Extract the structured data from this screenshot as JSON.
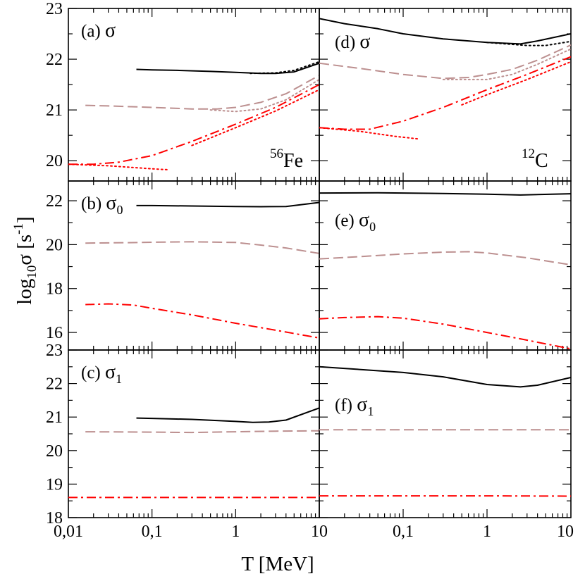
{
  "figure": {
    "xlabel": "T [MeV]",
    "ylabel_main": "log",
    "ylabel_sub": "10",
    "ylabel_sym": "σ [s",
    "ylabel_sup": "-1",
    "ylabel_close": "]"
  },
  "chart_data": [
    {
      "id": "a",
      "type": "line",
      "label": "(a)",
      "sym": "σ",
      "sub": "",
      "nucleus_mass": "56",
      "nucleus_symbol": "Fe",
      "x_scale": "log",
      "xlim": [
        0.01,
        10
      ],
      "ylim": [
        19.6,
        23
      ],
      "yticks": [
        20,
        21,
        22,
        23
      ],
      "ytick_labels": [
        "20",
        "21",
        "22",
        "23"
      ],
      "xtick_labels": [],
      "grid": false,
      "series": [
        {
          "style": "solid",
          "color": "#000000",
          "x": [
            0.065,
            0.1,
            0.2,
            0.5,
            1,
            2,
            3,
            5,
            10
          ],
          "y": [
            21.8,
            21.79,
            21.78,
            21.76,
            21.74,
            21.72,
            21.72,
            21.75,
            21.92
          ]
        },
        {
          "style": "dotted",
          "color": "#000000",
          "x": [
            1.5,
            3,
            5,
            10
          ],
          "y": [
            21.72,
            21.73,
            21.78,
            21.95
          ]
        },
        {
          "style": "dashed",
          "color": "#bc8f8f",
          "x": [
            0.016,
            0.03,
            0.1,
            0.3,
            0.6,
            1,
            2,
            4,
            10
          ],
          "y": [
            21.09,
            21.08,
            21.05,
            21.02,
            21.02,
            21.05,
            21.15,
            21.32,
            21.68
          ]
        },
        {
          "style": "dotted",
          "color": "#bc8f8f",
          "x": [
            0.5,
            1,
            2,
            4,
            10
          ],
          "y": [
            21.0,
            20.97,
            21.02,
            21.2,
            21.6
          ]
        },
        {
          "style": "dashdot",
          "color": "#ff0000",
          "x": [
            0.01,
            0.02,
            0.04,
            0.1,
            0.3,
            1,
            3,
            10
          ],
          "y": [
            19.93,
            19.93,
            19.97,
            20.1,
            20.38,
            20.72,
            21.05,
            21.5
          ]
        },
        {
          "style": "dotted",
          "color": "#ff0000",
          "x": [
            0.01,
            0.03,
            0.1,
            0.16
          ],
          "y": [
            19.93,
            19.9,
            19.84,
            19.82
          ]
        },
        {
          "style": "dotted",
          "color": "#ff0000",
          "x": [
            0.3,
            1,
            3,
            10
          ],
          "y": [
            20.3,
            20.65,
            20.98,
            21.4
          ]
        }
      ]
    },
    {
      "id": "b",
      "type": "line",
      "label": "(b)",
      "sym": "σ",
      "sub": "0",
      "x_scale": "log",
      "xlim": [
        0.01,
        10
      ],
      "ylim": [
        15.2,
        22.9
      ],
      "yticks": [
        16,
        18,
        20,
        22
      ],
      "ytick_labels": [
        "16",
        "18",
        "20",
        "22"
      ],
      "xtick_labels": [],
      "grid": false,
      "series": [
        {
          "style": "solid",
          "color": "#000000",
          "x": [
            0.065,
            0.1,
            0.3,
            1,
            2,
            4,
            10
          ],
          "y": [
            21.78,
            21.78,
            21.76,
            21.74,
            21.73,
            21.74,
            21.92
          ]
        },
        {
          "style": "dashed",
          "color": "#bc8f8f",
          "x": [
            0.016,
            0.05,
            0.1,
            0.3,
            1,
            2,
            4,
            10
          ],
          "y": [
            20.07,
            20.09,
            20.11,
            20.13,
            20.1,
            19.98,
            19.85,
            19.6
          ]
        },
        {
          "style": "dashdot",
          "color": "#ff0000",
          "x": [
            0.016,
            0.03,
            0.06,
            0.1,
            0.3,
            1,
            3,
            10
          ],
          "y": [
            17.27,
            17.3,
            17.25,
            17.1,
            16.8,
            16.42,
            16.1,
            15.75
          ]
        }
      ]
    },
    {
      "id": "c",
      "type": "line",
      "label": "(c)",
      "sym": "σ",
      "sub": "1",
      "x_scale": "log",
      "xlim": [
        0.01,
        10
      ],
      "ylim": [
        18,
        23
      ],
      "yticks": [
        18,
        19,
        20,
        21,
        22,
        23
      ],
      "ytick_labels": [
        "18",
        "19",
        "20",
        "21",
        "22",
        "23"
      ],
      "xtick_labels": [
        "0,01",
        "0,1",
        "1",
        "10"
      ],
      "grid": false,
      "series": [
        {
          "style": "solid",
          "color": "#000000",
          "x": [
            0.065,
            0.1,
            0.3,
            1,
            1.6,
            2.5,
            4,
            10
          ],
          "y": [
            20.97,
            20.96,
            20.93,
            20.87,
            20.84,
            20.85,
            20.91,
            21.27
          ]
        },
        {
          "style": "dashed",
          "color": "#bc8f8f",
          "x": [
            0.016,
            0.1,
            0.3,
            1,
            3,
            10
          ],
          "y": [
            20.56,
            20.55,
            20.54,
            20.56,
            20.58,
            20.59
          ]
        },
        {
          "style": "dashdot",
          "color": "#ff0000",
          "x": [
            0.01,
            0.1,
            1,
            10
          ],
          "y": [
            18.6,
            18.6,
            18.6,
            18.6
          ]
        }
      ]
    },
    {
      "id": "d",
      "type": "line",
      "label": "(d)",
      "sym": "σ",
      "sub": "",
      "nucleus_mass": "12",
      "nucleus_symbol": "C",
      "x_scale": "log",
      "xlim": [
        0.01,
        10
      ],
      "ylim": [
        19.6,
        23
      ],
      "yticks": [],
      "ytick_labels": [],
      "xtick_labels": [],
      "grid": false,
      "series": [
        {
          "style": "solid",
          "color": "#000000",
          "x": [
            0.01,
            0.02,
            0.05,
            0.1,
            0.3,
            1,
            2.5,
            4,
            10
          ],
          "y": [
            22.8,
            22.7,
            22.6,
            22.5,
            22.4,
            22.33,
            22.3,
            22.36,
            22.5
          ]
        },
        {
          "style": "dotted",
          "color": "#000000",
          "x": [
            1,
            3,
            5,
            10
          ],
          "y": [
            22.33,
            22.27,
            22.27,
            22.35
          ]
        },
        {
          "style": "dashed",
          "color": "#bc8f8f",
          "x": [
            0.01,
            0.03,
            0.1,
            0.3,
            0.6,
            1,
            2,
            4,
            10
          ],
          "y": [
            21.92,
            21.82,
            21.7,
            21.62,
            21.64,
            21.7,
            21.8,
            21.98,
            22.28
          ]
        },
        {
          "style": "dotted",
          "color": "#bc8f8f",
          "x": [
            0.3,
            1,
            2,
            4,
            10
          ],
          "y": [
            21.6,
            21.6,
            21.7,
            21.9,
            22.2
          ]
        },
        {
          "style": "dashdot",
          "color": "#ff0000",
          "x": [
            0.01,
            0.02,
            0.04,
            0.1,
            0.3,
            1,
            3,
            10
          ],
          "y": [
            20.65,
            20.62,
            20.62,
            20.78,
            21.05,
            21.4,
            21.7,
            22.05
          ]
        },
        {
          "style": "dotted",
          "color": "#ff0000",
          "x": [
            0.01,
            0.03,
            0.08,
            0.15
          ],
          "y": [
            20.65,
            20.58,
            20.48,
            20.43
          ]
        },
        {
          "style": "dotted",
          "color": "#ff0000",
          "x": [
            0.5,
            1,
            3,
            10
          ],
          "y": [
            21.1,
            21.3,
            21.6,
            21.95
          ]
        }
      ]
    },
    {
      "id": "e",
      "type": "line",
      "label": "(e)",
      "sym": "σ",
      "sub": "0",
      "x_scale": "log",
      "xlim": [
        0.01,
        10
      ],
      "ylim": [
        15.2,
        22.9
      ],
      "yticks": [],
      "ytick_labels": [],
      "xtick_labels": [],
      "grid": false,
      "series": [
        {
          "style": "solid",
          "color": "#000000",
          "x": [
            0.01,
            0.05,
            0.2,
            1,
            2.5,
            10
          ],
          "y": [
            22.35,
            22.36,
            22.34,
            22.3,
            22.26,
            22.32
          ]
        },
        {
          "style": "dashed",
          "color": "#bc8f8f",
          "x": [
            0.01,
            0.03,
            0.1,
            0.3,
            0.6,
            1,
            3,
            10
          ],
          "y": [
            19.35,
            19.45,
            19.58,
            19.66,
            19.68,
            19.62,
            19.4,
            19.08
          ]
        },
        {
          "style": "dashdot",
          "color": "#ff0000",
          "x": [
            0.01,
            0.02,
            0.05,
            0.1,
            0.3,
            1,
            3,
            10
          ],
          "y": [
            16.62,
            16.68,
            16.72,
            16.65,
            16.38,
            16.0,
            15.65,
            15.25
          ]
        }
      ]
    },
    {
      "id": "f",
      "type": "line",
      "label": "(f)",
      "sym": "σ",
      "sub": "1",
      "x_scale": "log",
      "xlim": [
        0.01,
        10
      ],
      "ylim": [
        18,
        23
      ],
      "yticks": [],
      "ytick_labels": [],
      "xtick_labels": [
        "",
        "0,1",
        "1",
        "10"
      ],
      "grid": false,
      "series": [
        {
          "style": "solid",
          "color": "#000000",
          "x": [
            0.01,
            0.03,
            0.1,
            0.3,
            1,
            2.5,
            4,
            10
          ],
          "y": [
            22.5,
            22.42,
            22.33,
            22.2,
            21.97,
            21.9,
            21.95,
            22.18
          ]
        },
        {
          "style": "dashed",
          "color": "#bc8f8f",
          "x": [
            0.01,
            0.1,
            1,
            10
          ],
          "y": [
            20.62,
            20.62,
            20.62,
            20.62
          ]
        },
        {
          "style": "dashdot",
          "color": "#ff0000",
          "x": [
            0.01,
            0.1,
            1,
            10
          ],
          "y": [
            18.65,
            18.65,
            18.65,
            18.64
          ]
        }
      ]
    }
  ]
}
